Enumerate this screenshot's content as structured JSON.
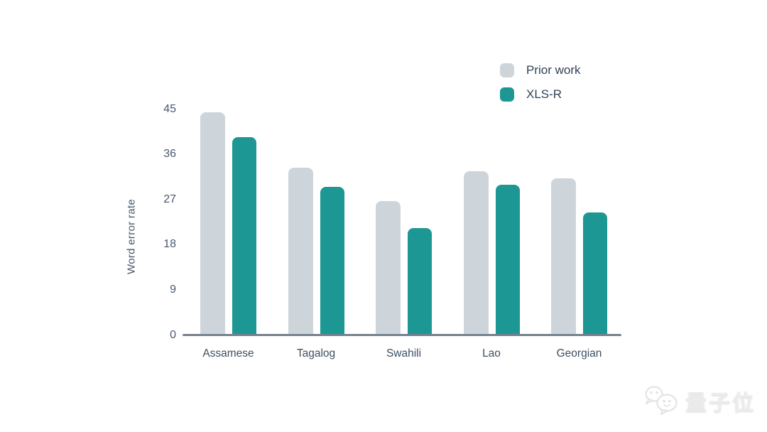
{
  "chart_data": {
    "type": "bar",
    "title": "",
    "ylabel": "Word error rate",
    "xlabel": "",
    "categories": [
      "Assamese",
      "Tagalog",
      "Swahili",
      "Lao",
      "Georgian"
    ],
    "series": [
      {
        "name": "Prior work",
        "color": "#ced5da",
        "values": [
          44.3,
          33.3,
          26.6,
          32.5,
          31.1
        ]
      },
      {
        "name": "XLS-R",
        "color": "#1d9793",
        "values": [
          39.3,
          29.5,
          21.2,
          29.9,
          24.4
        ]
      }
    ],
    "yticks": [
      0,
      9,
      18,
      27,
      36,
      45
    ],
    "ylim": [
      0,
      45
    ],
    "grid": false,
    "legend_position": "top-right"
  },
  "colors": {
    "background": "#ffffff",
    "axis_line": "#76828f",
    "tick_text": "#47586c",
    "category_text": "#3b4f63",
    "legend_text": "#2f4256",
    "watermark": "#ececec"
  },
  "watermark": {
    "text": "量子位",
    "icon": "wechat-chat-bubbles-icon"
  }
}
